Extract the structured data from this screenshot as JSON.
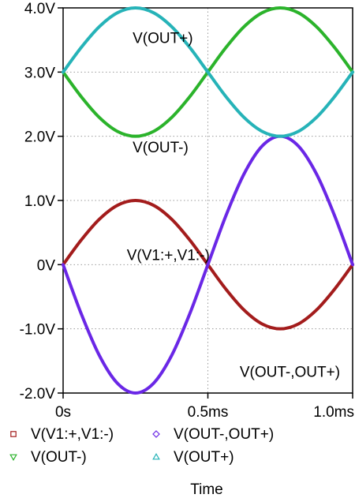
{
  "chart_data": {
    "type": "line",
    "xlabel": "Time",
    "x_unit": "ms",
    "xlim": [
      0,
      1.0
    ],
    "ylim": [
      -2.0,
      4.0
    ],
    "x_ticks": [
      {
        "value": 0,
        "label": "0s"
      },
      {
        "value": 0.5,
        "label": "0.5ms"
      },
      {
        "value": 1.0,
        "label": "1.0ms"
      }
    ],
    "y_ticks": [
      {
        "value": 4.0,
        "label": "4.0V"
      },
      {
        "value": 3.0,
        "label": "3.0V"
      },
      {
        "value": 2.0,
        "label": "2.0V"
      },
      {
        "value": 1.0,
        "label": "1.0V"
      },
      {
        "value": 0,
        "label": "0V"
      },
      {
        "value": -1.0,
        "label": "-1.0V"
      },
      {
        "value": -2.0,
        "label": "-2.0V"
      }
    ],
    "grid": true,
    "series": [
      {
        "name": "V(V1:+,V1:-)",
        "color": "#a31c1c",
        "marker": "square",
        "x": [
          0,
          0.0625,
          0.125,
          0.1875,
          0.25,
          0.3125,
          0.375,
          0.4375,
          0.5,
          0.5625,
          0.625,
          0.6875,
          0.75,
          0.8125,
          0.875,
          0.9375,
          1.0
        ],
        "y": [
          0,
          0.383,
          0.707,
          0.924,
          1.0,
          0.924,
          0.707,
          0.383,
          0,
          -0.383,
          -0.707,
          -0.924,
          -1.0,
          -0.924,
          -0.707,
          -0.383,
          0
        ]
      },
      {
        "name": "V(OUT-,OUT+)",
        "color": "#6a27e6",
        "marker": "diamond",
        "x": [
          0,
          0.0625,
          0.125,
          0.1875,
          0.25,
          0.3125,
          0.375,
          0.4375,
          0.5,
          0.5625,
          0.625,
          0.6875,
          0.75,
          0.8125,
          0.875,
          0.9375,
          1.0
        ],
        "y": [
          0,
          -0.765,
          -1.414,
          -1.848,
          -2.0,
          -1.848,
          -1.414,
          -0.765,
          0,
          0.765,
          1.414,
          1.848,
          2.0,
          1.848,
          1.414,
          0.765,
          0
        ]
      },
      {
        "name": "V(OUT-)",
        "color": "#2bb32b",
        "marker": "triangle-down",
        "x": [
          0,
          0.0625,
          0.125,
          0.1875,
          0.25,
          0.3125,
          0.375,
          0.4375,
          0.5,
          0.5625,
          0.625,
          0.6875,
          0.75,
          0.8125,
          0.875,
          0.9375,
          1.0
        ],
        "y": [
          3.0,
          2.617,
          2.293,
          2.076,
          2.0,
          2.076,
          2.293,
          2.617,
          3.0,
          3.383,
          3.707,
          3.924,
          4.0,
          3.924,
          3.707,
          3.383,
          3.0
        ]
      },
      {
        "name": "V(OUT+)",
        "color": "#26b3b8",
        "marker": "triangle-up",
        "x": [
          0,
          0.0625,
          0.125,
          0.1875,
          0.25,
          0.3125,
          0.375,
          0.4375,
          0.5,
          0.5625,
          0.625,
          0.6875,
          0.75,
          0.8125,
          0.875,
          0.9375,
          1.0
        ],
        "y": [
          3.0,
          3.383,
          3.707,
          3.924,
          4.0,
          3.924,
          3.707,
          3.383,
          3.0,
          2.617,
          2.293,
          2.076,
          2.0,
          2.076,
          2.293,
          2.617,
          3.0
        ]
      }
    ],
    "annotations": [
      {
        "text": "V(OUT+)",
        "x": 0.24,
        "y": 3.45
      },
      {
        "text": "V(OUT-)",
        "x": 0.24,
        "y": 1.75
      },
      {
        "text": "V(V1:+,V1:-)",
        "x": 0.22,
        "y": 0.07
      },
      {
        "text": "V(OUT-,OUT+)",
        "x": 0.61,
        "y": -1.75
      }
    ],
    "legend_placement": "bottom",
    "legend": [
      {
        "label": "V(V1:+,V1:-)",
        "marker": "square",
        "color": "#a31c1c"
      },
      {
        "label": "V(OUT-,OUT+)",
        "marker": "diamond",
        "color": "#6a27e6"
      },
      {
        "label": "V(OUT-)",
        "marker": "triangle-down",
        "color": "#2bb32b"
      },
      {
        "label": "V(OUT+)",
        "marker": "triangle-up",
        "color": "#26b3b8"
      }
    ]
  }
}
